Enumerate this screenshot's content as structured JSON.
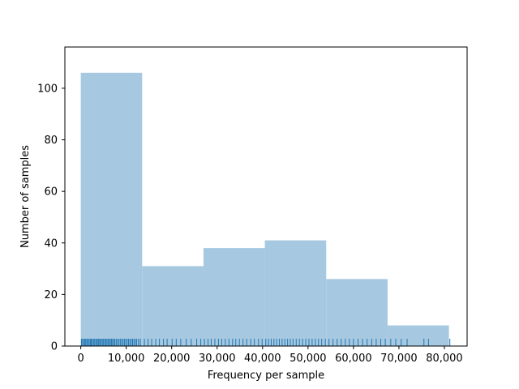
{
  "chart_data": {
    "type": "bar",
    "subtype": "histogram-with-rug",
    "xlabel": "Frequency per sample",
    "ylabel": "Number of samples",
    "xlim": [
      -3500,
      85000
    ],
    "ylim": [
      0,
      116
    ],
    "grid": false,
    "bins": [
      {
        "start": 0,
        "end": 13500,
        "count": 106
      },
      {
        "start": 13500,
        "end": 27000,
        "count": 31
      },
      {
        "start": 27000,
        "end": 40500,
        "count": 38
      },
      {
        "start": 40500,
        "end": 54000,
        "count": 41
      },
      {
        "start": 54000,
        "end": 67500,
        "count": 26
      },
      {
        "start": 67500,
        "end": 81000,
        "count": 8
      }
    ],
    "x_ticks": [
      {
        "value": 0,
        "label": "0"
      },
      {
        "value": 10000,
        "label": "10,000"
      },
      {
        "value": 20000,
        "label": "20,000"
      },
      {
        "value": 30000,
        "label": "30,000"
      },
      {
        "value": 40000,
        "label": "40,000"
      },
      {
        "value": 50000,
        "label": "50,000"
      },
      {
        "value": 60000,
        "label": "60,000"
      },
      {
        "value": 70000,
        "label": "70,000"
      },
      {
        "value": 80000,
        "label": "80,000"
      }
    ],
    "y_ticks": [
      {
        "value": 0,
        "label": "0"
      },
      {
        "value": 20,
        "label": "20"
      },
      {
        "value": 40,
        "label": "40"
      },
      {
        "value": 60,
        "label": "60"
      },
      {
        "value": 80,
        "label": "80"
      },
      {
        "value": 100,
        "label": "100"
      }
    ],
    "rug_values": [
      150,
      400,
      650,
      900,
      1100,
      1350,
      1600,
      1850,
      2100,
      2300,
      2550,
      2800,
      3050,
      3300,
      3550,
      3800,
      4000,
      4250,
      4500,
      4750,
      5000,
      5250,
      5500,
      5750,
      6000,
      6250,
      6500,
      6750,
      7000,
      7250,
      7500,
      7800,
      8100,
      8400,
      8700,
      9000,
      9300,
      9600,
      9900,
      10200,
      10500,
      10800,
      11100,
      11400,
      11700,
      12000,
      12300,
      12700,
      13100,
      14000,
      14800,
      15600,
      16500,
      17300,
      18200,
      19000,
      20100,
      21000,
      22000,
      23200,
      24300,
      25500,
      26400,
      27200,
      28000,
      28700,
      29500,
      30300,
      31000,
      31800,
      32600,
      33400,
      34100,
      34900,
      35700,
      36500,
      37400,
      38200,
      39100,
      39900,
      40700,
      41300,
      41900,
      42500,
      43100,
      43700,
      44300,
      44900,
      45500,
      46100,
      46700,
      47400,
      48100,
      48800,
      49500,
      50200,
      50900,
      51600,
      52300,
      53000,
      53800,
      54600,
      55500,
      56400,
      57300,
      58200,
      59100,
      60000,
      61000,
      62000,
      63000,
      64000,
      65000,
      66000,
      67000,
      68200,
      69300,
      70500,
      71800,
      75500,
      76500,
      81200
    ],
    "colors": {
      "bar_fill": "#a6c8e0",
      "rug": "#1f77b4",
      "axis": "#000000"
    }
  }
}
